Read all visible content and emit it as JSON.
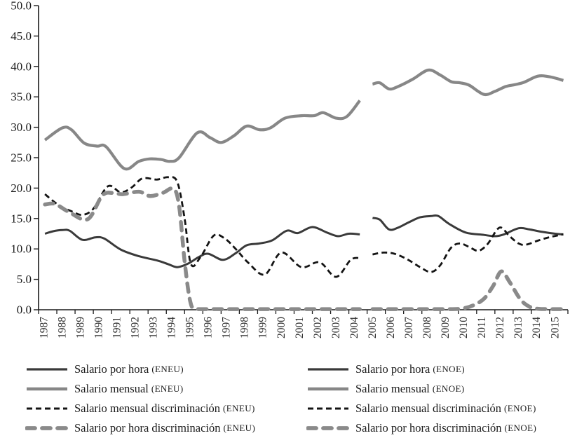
{
  "chart_data": {
    "type": "line",
    "title": "",
    "xlabel": "",
    "ylabel": "",
    "grid": false,
    "y_axis": {
      "min": 0,
      "max": 50,
      "step": 5,
      "tick_labels": [
        "0.0",
        "5.0",
        "10.0",
        "15.0",
        "20.0",
        "25.0",
        "30.0",
        "35.0",
        "40.0",
        "45.0",
        "50.0"
      ]
    },
    "x_axis": {
      "min": 1986.5,
      "max": 2015.5,
      "boundary_ticks": 30,
      "tick_labels": [
        "1987",
        "1988",
        "1989",
        "1990",
        "1991",
        "1992",
        "1993",
        "1994",
        "1995",
        "1996",
        "1997",
        "1998",
        "1999",
        "2000",
        "2001",
        "2002",
        "2003",
        "2004",
        "2005",
        "2006",
        "2007",
        "2008",
        "2009",
        "2010",
        "2011",
        "2012",
        "2013",
        "2014",
        "2015"
      ]
    },
    "axis_color": "#1a1a1a",
    "series": [
      {
        "key": "hora_eneu",
        "name": "Salario por hora (ENEU)",
        "style": "solid",
        "color": "#3a3a3a",
        "width": 3,
        "dash": null,
        "points": [
          [
            1986.85,
            12.5
          ],
          [
            1987.3,
            12.9
          ],
          [
            1987.8,
            13.1
          ],
          [
            1988.2,
            13.0
          ],
          [
            1988.9,
            11.5
          ],
          [
            1989.6,
            11.9
          ],
          [
            1990.1,
            11.7
          ],
          [
            1991,
            9.9
          ],
          [
            1992,
            8.8
          ],
          [
            1993,
            8.1
          ],
          [
            1993.6,
            7.5
          ],
          [
            1994.1,
            7.0
          ],
          [
            1994.7,
            7.6
          ],
          [
            1995.3,
            8.7
          ],
          [
            1995.8,
            9.2
          ],
          [
            1996.6,
            8.2
          ],
          [
            1997.3,
            9.3
          ],
          [
            1997.9,
            10.6
          ],
          [
            1998.6,
            10.9
          ],
          [
            1999.3,
            11.4
          ],
          [
            2000.1,
            13.0
          ],
          [
            2000.7,
            12.6
          ],
          [
            2001.5,
            13.6
          ],
          [
            2002.3,
            12.7
          ],
          [
            2002.9,
            12.1
          ],
          [
            2003.5,
            12.5
          ],
          [
            2004.1,
            12.4
          ]
        ]
      },
      {
        "key": "mensual_eneu",
        "name": "Salario mensual (ENEU)",
        "style": "solid",
        "color": "#878787",
        "width": 4.2,
        "dash": null,
        "points": [
          [
            1986.85,
            27.9
          ],
          [
            1987.8,
            29.9
          ],
          [
            1988.3,
            29.6
          ],
          [
            1989,
            27.4
          ],
          [
            1989.7,
            26.9
          ],
          [
            1990.2,
            26.8
          ],
          [
            1991.2,
            23.2
          ],
          [
            1992,
            24.4
          ],
          [
            1992.6,
            24.8
          ],
          [
            1993.2,
            24.7
          ],
          [
            1993.7,
            24.4
          ],
          [
            1994.2,
            25.0
          ],
          [
            1995.2,
            29.1
          ],
          [
            1995.9,
            28.3
          ],
          [
            1996.5,
            27.5
          ],
          [
            1997.2,
            28.6
          ],
          [
            1997.9,
            30.2
          ],
          [
            1998.6,
            29.6
          ],
          [
            1999.2,
            29.9
          ],
          [
            2000,
            31.5
          ],
          [
            2000.9,
            31.9
          ],
          [
            2001.6,
            31.9
          ],
          [
            2002.1,
            32.4
          ],
          [
            2002.8,
            31.5
          ],
          [
            2003.4,
            31.8
          ],
          [
            2004.1,
            34.4
          ]
        ]
      },
      {
        "key": "mensual_disc_eneu",
        "name": "Salario mensual discriminación (ENEU)",
        "style": "dashed",
        "color": "#141414",
        "width": 2.8,
        "dash": "8 5",
        "points": [
          [
            1986.85,
            19.0
          ],
          [
            1987.6,
            17.2
          ],
          [
            1988.3,
            16.2
          ],
          [
            1988.9,
            15.6
          ],
          [
            1989.5,
            16.6
          ],
          [
            1990.3,
            20.3
          ],
          [
            1991,
            19.3
          ],
          [
            1991.6,
            20.1
          ],
          [
            1992.2,
            21.6
          ],
          [
            1993,
            21.4
          ],
          [
            1993.6,
            21.8
          ],
          [
            1994.1,
            21.0
          ],
          [
            1994.5,
            15.0
          ],
          [
            1994.85,
            7.5
          ],
          [
            1995.4,
            8.8
          ],
          [
            1996.1,
            12.2
          ],
          [
            1996.7,
            11.7
          ],
          [
            1997.3,
            10.0
          ],
          [
            1998,
            7.7
          ],
          [
            1998.9,
            5.8
          ],
          [
            1999.8,
            9.4
          ],
          [
            2000.9,
            7.0
          ],
          [
            2001.9,
            7.8
          ],
          [
            2002.8,
            5.4
          ],
          [
            2003.6,
            8.2
          ],
          [
            2004.1,
            8.5
          ]
        ]
      },
      {
        "key": "hora_disc_eneu",
        "name": "Salario por hora discriminación (ENEU)",
        "style": "dashed",
        "color": "#8a8a8a",
        "width": 5.5,
        "dash": "12 10",
        "linecap": "round",
        "points": [
          [
            1986.85,
            17.3
          ],
          [
            1987.4,
            17.4
          ],
          [
            1988.2,
            16.0
          ],
          [
            1989.2,
            14.9
          ],
          [
            1990,
            18.8
          ],
          [
            1990.6,
            19.2
          ],
          [
            1991.1,
            19.0
          ],
          [
            1992,
            19.4
          ],
          [
            1992.6,
            18.7
          ],
          [
            1993.3,
            19.2
          ],
          [
            1993.9,
            19.9
          ],
          [
            1994.2,
            17.0
          ],
          [
            1994.5,
            8.0
          ],
          [
            1994.8,
            1.5
          ],
          [
            1995.1,
            0.15
          ],
          [
            1996,
            0.1
          ],
          [
            1998,
            0.1
          ],
          [
            2000,
            0.1
          ],
          [
            2002,
            0.1
          ],
          [
            2004.1,
            0.1
          ]
        ]
      },
      {
        "key": "hora_enoe",
        "name": "Salario por hora (ENOE)",
        "style": "solid",
        "color": "#3a3a3a",
        "width": 3,
        "dash": null,
        "points": [
          [
            2004.8,
            15.1
          ],
          [
            2005.2,
            14.8
          ],
          [
            2005.7,
            13.2
          ],
          [
            2006.2,
            13.5
          ],
          [
            2006.8,
            14.4
          ],
          [
            2007.4,
            15.2
          ],
          [
            2008,
            15.4
          ],
          [
            2008.4,
            15.4
          ],
          [
            2009,
            14.1
          ],
          [
            2009.9,
            12.7
          ],
          [
            2010.9,
            12.3
          ],
          [
            2011.5,
            12.1
          ],
          [
            2012,
            12.4
          ],
          [
            2012.8,
            13.4
          ],
          [
            2013.4,
            13.2
          ],
          [
            2014.1,
            12.8
          ],
          [
            2014.8,
            12.5
          ],
          [
            2015.25,
            12.4
          ]
        ]
      },
      {
        "key": "mensual_enoe",
        "name": "Salario mensual (ENOE)",
        "style": "solid",
        "color": "#878787",
        "width": 4.2,
        "dash": null,
        "points": [
          [
            2004.8,
            37.1
          ],
          [
            2005.2,
            37.3
          ],
          [
            2005.7,
            36.3
          ],
          [
            2006.2,
            36.7
          ],
          [
            2007,
            37.9
          ],
          [
            2007.85,
            39.4
          ],
          [
            2008.5,
            38.6
          ],
          [
            2009.1,
            37.5
          ],
          [
            2009.6,
            37.3
          ],
          [
            2010.1,
            36.9
          ],
          [
            2010.9,
            35.4
          ],
          [
            2011.5,
            35.9
          ],
          [
            2012.1,
            36.7
          ],
          [
            2012.6,
            37.0
          ],
          [
            2013.1,
            37.4
          ],
          [
            2013.85,
            38.4
          ],
          [
            2014.5,
            38.3
          ],
          [
            2015.25,
            37.7
          ]
        ]
      },
      {
        "key": "mensual_disc_enoe",
        "name": "Salario mensual discriminación (ENOE)",
        "style": "dashed",
        "color": "#141414",
        "width": 2.8,
        "dash": "8 5",
        "points": [
          [
            2004.8,
            9.1
          ],
          [
            2005.4,
            9.4
          ],
          [
            2006,
            9.2
          ],
          [
            2006.7,
            8.3
          ],
          [
            2007.4,
            7.0
          ],
          [
            2008,
            6.2
          ],
          [
            2008.5,
            7.3
          ],
          [
            2009.1,
            10.2
          ],
          [
            2009.6,
            10.9
          ],
          [
            2010.1,
            10.3
          ],
          [
            2010.6,
            9.7
          ],
          [
            2011.1,
            10.8
          ],
          [
            2011.75,
            13.5
          ],
          [
            2012.3,
            12.1
          ],
          [
            2012.8,
            10.9
          ],
          [
            2013.2,
            10.7
          ],
          [
            2013.9,
            11.4
          ],
          [
            2014.6,
            12.0
          ],
          [
            2015.25,
            12.4
          ]
        ]
      },
      {
        "key": "hora_disc_enoe",
        "name": "Salario por hora discriminación (ENOE)",
        "style": "dashed",
        "color": "#8a8a8a",
        "width": 5.5,
        "dash": "12 10",
        "linecap": "round",
        "points": [
          [
            2004.8,
            0.1
          ],
          [
            2006,
            0.1
          ],
          [
            2007.5,
            0.1
          ],
          [
            2009,
            0.1
          ],
          [
            2009.7,
            0.2
          ],
          [
            2010.3,
            0.7
          ],
          [
            2010.9,
            1.8
          ],
          [
            2011.4,
            3.9
          ],
          [
            2011.85,
            6.3
          ],
          [
            2012.3,
            4.6
          ],
          [
            2012.9,
            1.7
          ],
          [
            2013.4,
            0.5
          ],
          [
            2013.9,
            0.15
          ],
          [
            2015.25,
            0.1
          ]
        ]
      }
    ]
  },
  "legend": {
    "columns": [
      {
        "group": "ENEU",
        "items": [
          {
            "label": "Salario por hora",
            "survey": "(ENEU)",
            "series": "hora_eneu"
          },
          {
            "label": "Salario mensual",
            "survey": "(ENEU)",
            "series": "mensual_eneu"
          },
          {
            "label": "Salario mensual discriminación",
            "survey": "(ENEU)",
            "series": "mensual_disc_eneu"
          },
          {
            "label": "Salario por hora discriminación",
            "survey": "(ENEU)",
            "series": "hora_disc_eneu"
          }
        ]
      },
      {
        "group": "ENOE",
        "items": [
          {
            "label": "Salario por hora",
            "survey": "(ENOE)",
            "series": "hora_enoe"
          },
          {
            "label": "Salario mensual",
            "survey": "(ENOE)",
            "series": "mensual_enoe"
          },
          {
            "label": "Salario mensual discriminación",
            "survey": "(ENOE)",
            "series": "mensual_disc_enoe"
          },
          {
            "label": "Salario por hora discriminación",
            "survey": "(ENOE)",
            "series": "hora_disc_enoe"
          }
        ]
      }
    ]
  }
}
